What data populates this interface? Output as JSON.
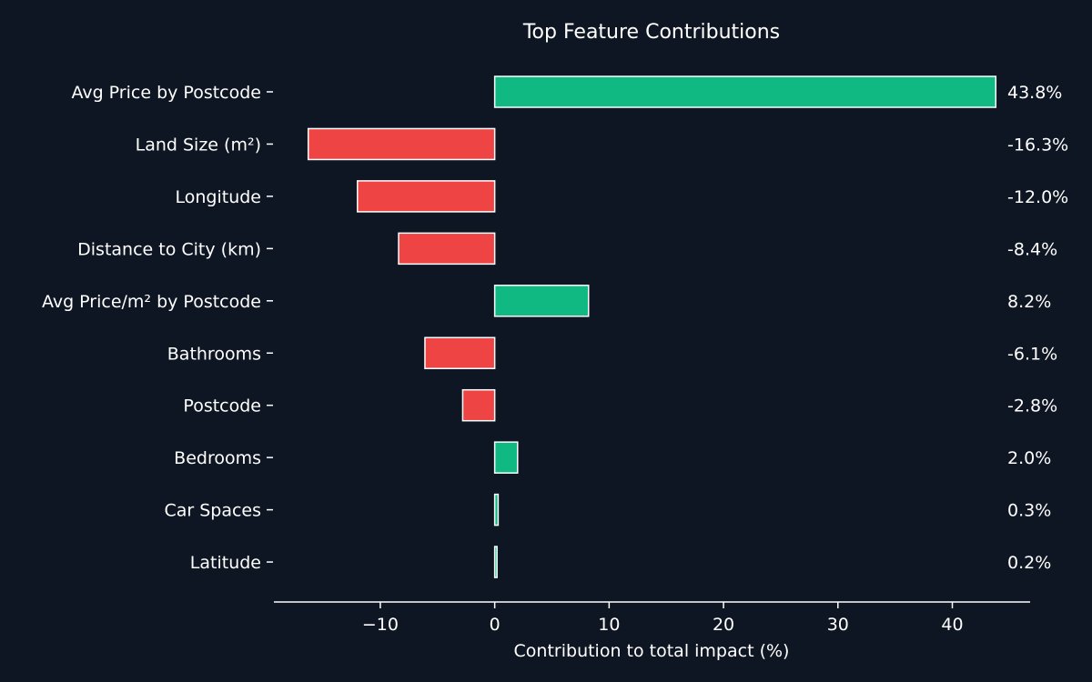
{
  "chart_data": {
    "type": "bar",
    "orientation": "horizontal",
    "title": "Top Feature Contributions",
    "xlabel": "Contribution to total impact (%)",
    "ylabel": "",
    "categories": [
      "Avg Price by Postcode",
      "Land Size (m²)",
      "Longitude",
      "Distance to City (km)",
      "Avg Price/m² by Postcode",
      "Bathrooms",
      "Postcode",
      "Bedrooms",
      "Car Spaces",
      "Latitude"
    ],
    "values": [
      43.8,
      -16.3,
      -12.0,
      -8.4,
      8.2,
      -6.1,
      -2.8,
      2.0,
      0.3,
      0.2
    ],
    "value_labels": [
      "43.8%",
      "-16.3%",
      "-12.0%",
      "-8.4%",
      "8.2%",
      "-6.1%",
      "-2.8%",
      "2.0%",
      "0.3%",
      "0.2%"
    ],
    "xlim": [
      -19.3,
      46.8
    ],
    "xticks": [
      -10,
      0,
      10,
      20,
      30,
      40
    ],
    "xtick_labels": [
      "−10",
      "0",
      "10",
      "20",
      "30",
      "40"
    ],
    "grid": false,
    "legend": "none",
    "colors": {
      "background": "#0f1623",
      "positive": "#10b981",
      "negative": "#ef4444",
      "edge": "#ffffff",
      "text": "#ffffff"
    }
  }
}
